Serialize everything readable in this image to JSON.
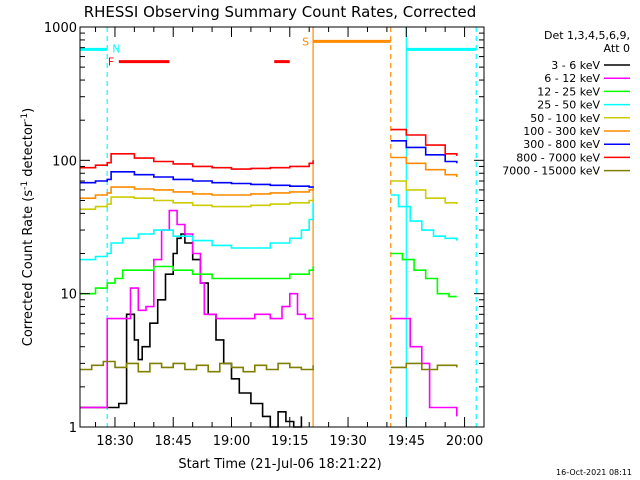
{
  "chart_data": {
    "type": "line",
    "title": "RHESSI Observing Summary Count Rates, Corrected",
    "xlabel": "Start Time (21-Jul-06 18:21:22)",
    "ylabel_main": "Corrected Count Rate (s",
    "ylabel_sup1": "-1",
    "ylabel_mid": " detector",
    "ylabel_sup2": "-1",
    "ylabel_end": ")",
    "yscale": "log",
    "ylim": [
      1,
      1000
    ],
    "xlim": [
      1101,
      1205
    ],
    "y_ticks": [
      {
        "value": 1,
        "label": "1"
      },
      {
        "value": 10,
        "label": "10"
      },
      {
        "value": 100,
        "label": "100"
      },
      {
        "value": 1000,
        "label": "1000"
      }
    ],
    "x_ticks": [
      {
        "value": 1110,
        "label": "18:30"
      },
      {
        "value": 1125,
        "label": "18:45"
      },
      {
        "value": 1140,
        "label": "19:00"
      },
      {
        "value": 1155,
        "label": "19:15"
      },
      {
        "value": 1170,
        "label": "19:30"
      },
      {
        "value": 1185,
        "label": "19:45"
      },
      {
        "value": 1200,
        "label": "20:00"
      }
    ],
    "legend_header": [
      "Det 1,3,4,5,6,9,",
      "Att 0"
    ],
    "legend_position": "right",
    "series": [
      {
        "name": "3 - 6 keV",
        "color": "#000000",
        "points": [
          [
            1101,
            1.4
          ],
          [
            1108,
            1.4
          ],
          [
            1111,
            1.5
          ],
          [
            1113,
            7
          ],
          [
            1115,
            4.5
          ],
          [
            1116,
            3.2
          ],
          [
            1117,
            4
          ],
          [
            1119,
            6
          ],
          [
            1121,
            9
          ],
          [
            1123,
            14
          ],
          [
            1125,
            20
          ],
          [
            1126,
            26
          ],
          [
            1127,
            28
          ],
          [
            1128,
            24
          ],
          [
            1130,
            18
          ],
          [
            1132,
            12
          ],
          [
            1134,
            7
          ],
          [
            1136,
            4.5
          ],
          [
            1138,
            3
          ],
          [
            1140,
            2.3
          ],
          [
            1142,
            1.8
          ],
          [
            1145,
            1.5
          ],
          [
            1148,
            1.2
          ],
          [
            1150,
            1
          ],
          [
            1152,
            1.3
          ],
          [
            1154,
            1.1
          ],
          [
            1156,
            1
          ],
          [
            1158,
            1.2
          ]
        ]
      },
      {
        "name": "6 - 12 keV",
        "color": "#ff00ff",
        "points": [
          [
            1101,
            1.4
          ],
          [
            1108,
            1.4
          ],
          [
            1108,
            6.5
          ],
          [
            1113,
            6.5
          ],
          [
            1114,
            11
          ],
          [
            1116,
            7.5
          ],
          [
            1118,
            8
          ],
          [
            1120,
            18
          ],
          [
            1122,
            30
          ],
          [
            1124,
            42
          ],
          [
            1126,
            33
          ],
          [
            1128,
            28
          ],
          [
            1130,
            20
          ],
          [
            1132,
            12
          ],
          [
            1133,
            7
          ],
          [
            1136,
            6.5
          ],
          [
            1140,
            6.5
          ],
          [
            1143,
            6.5
          ],
          [
            1146,
            7
          ],
          [
            1150,
            6.5
          ],
          [
            1153,
            8
          ],
          [
            1155,
            10
          ],
          [
            1157,
            7
          ],
          [
            1159,
            6.5
          ],
          [
            1161,
            6.5
          ],
          [
            1181,
            6.5
          ],
          [
            1183,
            6.5
          ],
          [
            1185,
            6.5
          ],
          [
            1186,
            4
          ],
          [
            1189,
            3
          ],
          [
            1191,
            1.4
          ],
          [
            1196,
            1.4
          ],
          [
            1198,
            1.2
          ]
        ]
      },
      {
        "name": "12 - 25 keV",
        "color": "#00ff00",
        "points": [
          [
            1101,
            10
          ],
          [
            1105,
            11
          ],
          [
            1108,
            12
          ],
          [
            1110,
            13
          ],
          [
            1112,
            15
          ],
          [
            1115,
            15
          ],
          [
            1120,
            16
          ],
          [
            1125,
            15
          ],
          [
            1130,
            14
          ],
          [
            1135,
            13
          ],
          [
            1140,
            13
          ],
          [
            1145,
            13
          ],
          [
            1150,
            13
          ],
          [
            1155,
            14
          ],
          [
            1160,
            15
          ],
          [
            1161,
            16
          ],
          [
            1181,
            20
          ],
          [
            1184,
            18
          ],
          [
            1187,
            15
          ],
          [
            1190,
            13
          ],
          [
            1193,
            10
          ],
          [
            1196,
            9.5
          ],
          [
            1198,
            9.5
          ]
        ]
      },
      {
        "name": "25 - 50 keV",
        "color": "#00ffff",
        "points": [
          [
            1101,
            18
          ],
          [
            1105,
            19
          ],
          [
            1108,
            20
          ],
          [
            1109,
            24
          ],
          [
            1112,
            26
          ],
          [
            1116,
            28
          ],
          [
            1120,
            30
          ],
          [
            1125,
            27
          ],
          [
            1130,
            25
          ],
          [
            1135,
            23
          ],
          [
            1140,
            22
          ],
          [
            1145,
            22
          ],
          [
            1150,
            24
          ],
          [
            1155,
            26
          ],
          [
            1158,
            30
          ],
          [
            1160,
            36
          ],
          [
            1161,
            48
          ],
          [
            1181,
            55
          ],
          [
            1183,
            45
          ],
          [
            1186,
            35
          ],
          [
            1189,
            30
          ],
          [
            1192,
            27
          ],
          [
            1195,
            26
          ],
          [
            1198,
            25
          ]
        ]
      },
      {
        "name": "50 - 100 keV",
        "color": "#cccc00",
        "points": [
          [
            1101,
            43
          ],
          [
            1105,
            45
          ],
          [
            1108,
            47
          ],
          [
            1109,
            53
          ],
          [
            1115,
            52
          ],
          [
            1120,
            50
          ],
          [
            1125,
            48
          ],
          [
            1130,
            46
          ],
          [
            1135,
            45
          ],
          [
            1140,
            45
          ],
          [
            1145,
            46
          ],
          [
            1150,
            47
          ],
          [
            1155,
            48
          ],
          [
            1160,
            50
          ],
          [
            1161,
            52
          ],
          [
            1181,
            70
          ],
          [
            1185,
            60
          ],
          [
            1190,
            52
          ],
          [
            1195,
            48
          ],
          [
            1198,
            47
          ]
        ]
      },
      {
        "name": "100 - 300 keV",
        "color": "#ff8c00",
        "points": [
          [
            1101,
            52
          ],
          [
            1105,
            55
          ],
          [
            1108,
            57
          ],
          [
            1109,
            63
          ],
          [
            1115,
            61
          ],
          [
            1120,
            60
          ],
          [
            1125,
            58
          ],
          [
            1130,
            56
          ],
          [
            1135,
            55
          ],
          [
            1140,
            55
          ],
          [
            1145,
            56
          ],
          [
            1150,
            57
          ],
          [
            1155,
            58
          ],
          [
            1160,
            60
          ],
          [
            1161,
            62
          ],
          [
            1181,
            105
          ],
          [
            1185,
            95
          ],
          [
            1190,
            85
          ],
          [
            1195,
            78
          ],
          [
            1198,
            75
          ]
        ]
      },
      {
        "name": "300 - 800 keV",
        "color": "#0000ff",
        "points": [
          [
            1101,
            68
          ],
          [
            1105,
            70
          ],
          [
            1108,
            72
          ],
          [
            1109,
            82
          ],
          [
            1115,
            78
          ],
          [
            1120,
            75
          ],
          [
            1125,
            72
          ],
          [
            1130,
            70
          ],
          [
            1135,
            68
          ],
          [
            1140,
            67
          ],
          [
            1145,
            66
          ],
          [
            1150,
            65
          ],
          [
            1155,
            64
          ],
          [
            1160,
            63
          ],
          [
            1161,
            64
          ],
          [
            1181,
            140
          ],
          [
            1185,
            125
          ],
          [
            1190,
            110
          ],
          [
            1195,
            98
          ],
          [
            1198,
            95
          ]
        ]
      },
      {
        "name": "800 - 7000 keV",
        "color": "#ff0000",
        "points": [
          [
            1101,
            88
          ],
          [
            1105,
            92
          ],
          [
            1108,
            96
          ],
          [
            1109,
            112
          ],
          [
            1115,
            104
          ],
          [
            1120,
            98
          ],
          [
            1125,
            94
          ],
          [
            1130,
            90
          ],
          [
            1135,
            88
          ],
          [
            1140,
            86
          ],
          [
            1145,
            87
          ],
          [
            1150,
            88
          ],
          [
            1155,
            90
          ],
          [
            1160,
            95
          ],
          [
            1161,
            100
          ],
          [
            1181,
            170
          ],
          [
            1185,
            155
          ],
          [
            1190,
            130
          ],
          [
            1195,
            112
          ],
          [
            1198,
            108
          ]
        ]
      },
      {
        "name": "7000 - 15000 keV",
        "color": "#808000",
        "points": [
          [
            1101,
            2.7
          ],
          [
            1104,
            2.9
          ],
          [
            1107,
            3.1
          ],
          [
            1110,
            2.8
          ],
          [
            1113,
            3
          ],
          [
            1116,
            2.6
          ],
          [
            1119,
            3
          ],
          [
            1122,
            2.8
          ],
          [
            1125,
            3
          ],
          [
            1128,
            2.7
          ],
          [
            1131,
            2.9
          ],
          [
            1134,
            2.6
          ],
          [
            1137,
            3
          ],
          [
            1140,
            2.8
          ],
          [
            1143,
            2.6
          ],
          [
            1146,
            2.9
          ],
          [
            1149,
            2.7
          ],
          [
            1152,
            3
          ],
          [
            1155,
            2.8
          ],
          [
            1158,
            2.7
          ],
          [
            1161,
            2.9
          ],
          [
            1181,
            2.8
          ],
          [
            1185,
            3
          ],
          [
            1189,
            2.7
          ],
          [
            1193,
            2.9
          ],
          [
            1198,
            2.8
          ]
        ]
      }
    ],
    "flags": {
      "N_label": "N",
      "F_label": "F",
      "S_label": "S",
      "night_intervals": [
        [
          1101,
          1108
        ],
        [
          1185,
          1203
        ]
      ],
      "night_level": 680,
      "flare_intervals": [
        [
          1111,
          1124
        ],
        [
          1151,
          1155
        ]
      ],
      "flare_level": 550,
      "saa_interval": [
        1161,
        1181
      ],
      "saa_level": 780
    },
    "vlines": [
      {
        "x": 1108,
        "color": "#00ffff",
        "style": "dashed"
      },
      {
        "x": 1161,
        "color": "#ff8c00",
        "style": "solid"
      },
      {
        "x": 1181,
        "color": "#ff8c00",
        "style": "dashed"
      },
      {
        "x": 1185,
        "color": "#00ffff",
        "style": "solid"
      },
      {
        "x": 1203,
        "color": "#00ffff",
        "style": "dashed"
      }
    ],
    "footer_timestamp": "16-Oct-2021 08:11"
  }
}
